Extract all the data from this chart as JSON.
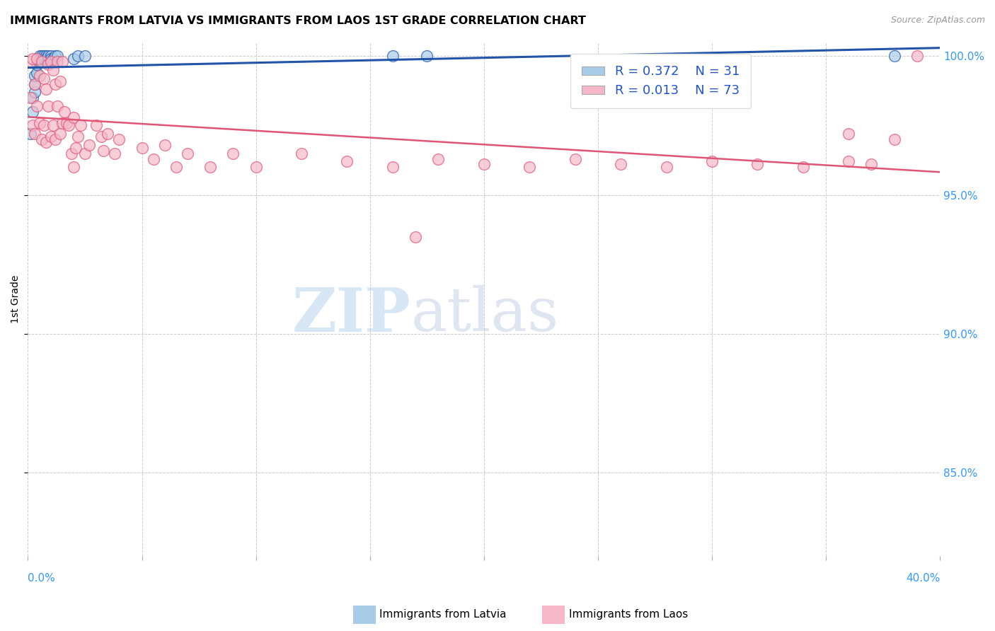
{
  "title": "IMMIGRANTS FROM LATVIA VS IMMIGRANTS FROM LAOS 1ST GRADE CORRELATION CHART",
  "source": "Source: ZipAtlas.com",
  "ylabel": "1st Grade",
  "xmin": 0.0,
  "xmax": 0.4,
  "ymin": 0.82,
  "ymax": 1.005,
  "yticks": [
    0.85,
    0.9,
    0.95,
    1.0
  ],
  "legend_r_latvia": "R = 0.372",
  "legend_n_latvia": "N = 31",
  "legend_r_laos": "R = 0.013",
  "legend_n_laos": "N = 73",
  "color_latvia": "#a8cce8",
  "color_laos": "#f4b8c8",
  "trendline_latvia": "#2255aa",
  "trendline_laos": "#e05575",
  "watermark_zip": "ZIP",
  "watermark_atlas": "atlas",
  "latvia_x": [
    0.001,
    0.002,
    0.002,
    0.003,
    0.003,
    0.003,
    0.004,
    0.004,
    0.005,
    0.005,
    0.005,
    0.006,
    0.006,
    0.007,
    0.007,
    0.007,
    0.008,
    0.008,
    0.009,
    0.009,
    0.01,
    0.01,
    0.011,
    0.012,
    0.013,
    0.02,
    0.022,
    0.025,
    0.16,
    0.175,
    0.38
  ],
  "latvia_y": [
    0.972,
    0.98,
    0.985,
    0.987,
    0.99,
    0.993,
    0.994,
    0.997,
    0.998,
    0.999,
    1.0,
    0.999,
    1.0,
    0.999,
    1.0,
    0.999,
    1.0,
    0.999,
    0.999,
    1.0,
    1.0,
    0.999,
    0.999,
    1.0,
    1.0,
    0.999,
    1.0,
    1.0,
    1.0,
    1.0,
    1.0
  ],
  "laos_x": [
    0.001,
    0.001,
    0.002,
    0.002,
    0.003,
    0.003,
    0.004,
    0.004,
    0.005,
    0.005,
    0.006,
    0.006,
    0.007,
    0.007,
    0.008,
    0.008,
    0.009,
    0.009,
    0.01,
    0.01,
    0.011,
    0.011,
    0.012,
    0.012,
    0.013,
    0.013,
    0.014,
    0.014,
    0.015,
    0.015,
    0.016,
    0.017,
    0.018,
    0.019,
    0.02,
    0.021,
    0.022,
    0.023,
    0.025,
    0.027,
    0.03,
    0.032,
    0.033,
    0.035,
    0.038,
    0.04,
    0.05,
    0.055,
    0.06,
    0.065,
    0.07,
    0.08,
    0.09,
    0.1,
    0.12,
    0.14,
    0.16,
    0.18,
    0.2,
    0.22,
    0.24,
    0.26,
    0.28,
    0.3,
    0.32,
    0.34,
    0.36,
    0.37,
    0.38,
    0.39,
    0.02,
    0.17,
    0.36
  ],
  "laos_y": [
    0.998,
    0.985,
    0.999,
    0.975,
    0.99,
    0.972,
    0.999,
    0.982,
    0.993,
    0.976,
    0.998,
    0.97,
    0.992,
    0.975,
    0.988,
    0.969,
    0.997,
    0.982,
    0.998,
    0.971,
    0.995,
    0.975,
    0.99,
    0.97,
    0.998,
    0.982,
    0.991,
    0.972,
    0.998,
    0.976,
    0.98,
    0.976,
    0.975,
    0.965,
    0.978,
    0.967,
    0.971,
    0.975,
    0.965,
    0.968,
    0.975,
    0.971,
    0.966,
    0.972,
    0.965,
    0.97,
    0.967,
    0.963,
    0.968,
    0.96,
    0.965,
    0.96,
    0.965,
    0.96,
    0.965,
    0.962,
    0.96,
    0.963,
    0.961,
    0.96,
    0.963,
    0.961,
    0.96,
    0.962,
    0.961,
    0.96,
    0.962,
    0.961,
    0.97,
    1.0,
    0.96,
    0.935,
    0.972
  ]
}
